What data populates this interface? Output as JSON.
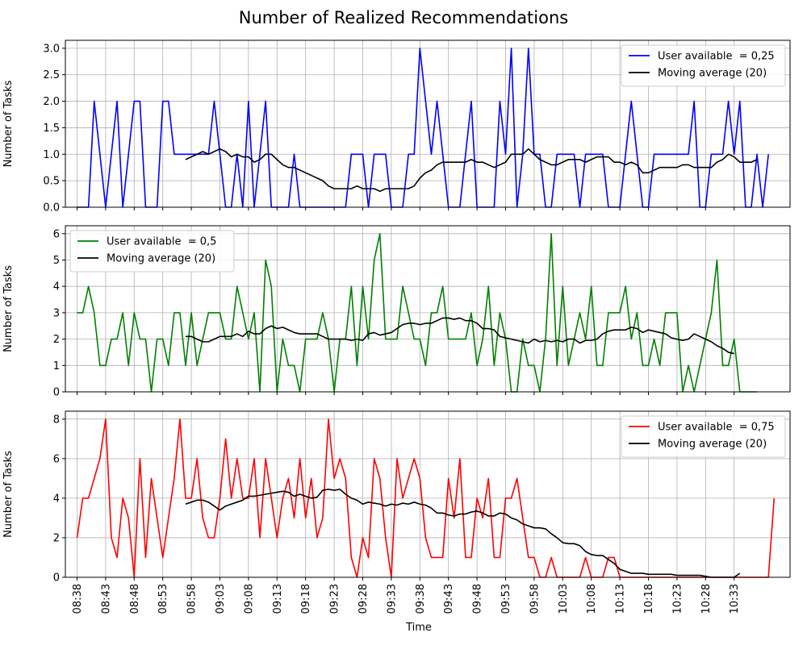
{
  "figure": {
    "title": "Number of Realized Recommendations"
  },
  "chart_data": {
    "type": "line",
    "title": "Number of Realized Recommendations",
    "xlabel": "Time",
    "x_tick_labels": [
      "08:38",
      "08:43",
      "08:48",
      "08:53",
      "08:58",
      "09:03",
      "09:08",
      "09:13",
      "09:18",
      "09:23",
      "09:28",
      "09:33",
      "09:38",
      "09:43",
      "09:48",
      "09:53",
      "09:58",
      "10:03",
      "10:08",
      "10:13",
      "10:18",
      "10:23",
      "10:28",
      "10:33"
    ],
    "x_start": "08:38",
    "x_step_minutes": 1,
    "grid": true,
    "panels": [
      {
        "ylabel": "Number of Tasks",
        "ylim": [
          0,
          3.15
        ],
        "yticks": [
          0.0,
          0.5,
          1.0,
          1.5,
          2.0,
          2.5,
          3.0
        ],
        "ytick_labels": [
          "0.0",
          "0.5",
          "1.0",
          "1.5",
          "2.0",
          "2.5",
          "3.0"
        ],
        "legend_position": "top-right",
        "series": [
          {
            "name": "User available  = 0,25",
            "color": "#0000ff",
            "x_offset": 0,
            "values": [
              0,
              0,
              0,
              2,
              1,
              0,
              1,
              2,
              0,
              1,
              2,
              2,
              0,
              0,
              0,
              2,
              2,
              1,
              1,
              1,
              1,
              1,
              1,
              1,
              2,
              1,
              0,
              0,
              1,
              0,
              2,
              0,
              1,
              2,
              0,
              0,
              0,
              0,
              1,
              0,
              0,
              0,
              0,
              0,
              0,
              0,
              0,
              0,
              1,
              1,
              1,
              0,
              1,
              1,
              1,
              0,
              0,
              0,
              1,
              1,
              3,
              2,
              1,
              2,
              1,
              0,
              0,
              0,
              1,
              2,
              0,
              0,
              0,
              0,
              2,
              1,
              3,
              0,
              1,
              3,
              1,
              1,
              0,
              0,
              1,
              1,
              1,
              1,
              0,
              1,
              1,
              1,
              1,
              0,
              0,
              0,
              1,
              2,
              1,
              0,
              0,
              1,
              1,
              1,
              1,
              1,
              1,
              1,
              2,
              0,
              0,
              1,
              1,
              1,
              2,
              1,
              2,
              0,
              0,
              1,
              0,
              1
            ]
          },
          {
            "name": "Moving average (20)",
            "color": "#000000",
            "x_offset": 19,
            "values": [
              0.9,
              0.95,
              1.0,
              1.05,
              1.0,
              1.05,
              1.1,
              1.05,
              0.95,
              1.0,
              0.95,
              0.95,
              0.85,
              0.9,
              1.0,
              1.0,
              0.9,
              0.8,
              0.75,
              0.75,
              0.7,
              0.65,
              0.6,
              0.55,
              0.5,
              0.4,
              0.35,
              0.35,
              0.35,
              0.35,
              0.4,
              0.35,
              0.35,
              0.35,
              0.3,
              0.35,
              0.35,
              0.35,
              0.35,
              0.35,
              0.4,
              0.55,
              0.65,
              0.7,
              0.8,
              0.85,
              0.85,
              0.85,
              0.85,
              0.85,
              0.9,
              0.85,
              0.85,
              0.8,
              0.75,
              0.8,
              0.85,
              1.0,
              1.0,
              1.0,
              1.1,
              1.0,
              0.9,
              0.85,
              0.8,
              0.8,
              0.85,
              0.9,
              0.9,
              0.9,
              0.85,
              0.9,
              0.95,
              0.95,
              0.95,
              0.85,
              0.85,
              0.8,
              0.85,
              0.8,
              0.65,
              0.65,
              0.7,
              0.75,
              0.75,
              0.75,
              0.75,
              0.8,
              0.8,
              0.75,
              0.75,
              0.75,
              0.75,
              0.85,
              0.9,
              1.0,
              0.95,
              0.85,
              0.85,
              0.85,
              0.9
            ]
          }
        ]
      },
      {
        "ylabel": "Number of Tasks",
        "ylim": [
          0,
          6.3
        ],
        "yticks": [
          0,
          1,
          2,
          3,
          4,
          5,
          6
        ],
        "ytick_labels": [
          "0",
          "1",
          "2",
          "3",
          "4",
          "5",
          "6"
        ],
        "legend_position": "top-left",
        "series": [
          {
            "name": "User available  = 0,5",
            "color": "#008000",
            "x_offset": 0,
            "values": [
              3,
              3,
              4,
              3,
              1,
              1,
              2,
              2,
              3,
              1,
              3,
              2,
              2,
              0,
              2,
              2,
              1,
              3,
              3,
              1,
              3,
              1,
              2,
              3,
              3,
              3,
              2,
              2,
              4,
              3,
              2,
              3,
              0,
              5,
              4,
              0,
              2,
              1,
              1,
              0,
              2,
              2,
              2,
              3,
              2,
              0,
              2,
              2,
              4,
              1,
              4,
              2,
              5,
              6,
              2,
              2,
              2,
              4,
              3,
              2,
              2,
              1,
              3,
              3,
              4,
              2,
              2,
              2,
              2,
              3,
              1,
              2,
              4,
              1,
              3,
              2,
              0,
              0,
              2,
              1,
              1,
              0,
              2,
              6,
              1,
              4,
              1,
              2,
              3,
              2,
              4,
              1,
              1,
              3,
              3,
              3,
              4,
              2,
              3,
              1,
              1,
              2,
              1,
              3,
              3,
              3,
              0,
              1,
              0,
              1,
              2,
              3,
              5,
              1,
              1,
              2,
              0,
              0,
              0,
              0
            ]
          },
          {
            "name": "Moving average (20)",
            "color": "#000000",
            "x_offset": 19,
            "values": [
              2.1,
              2.1,
              2.0,
              1.9,
              1.9,
              2.0,
              2.1,
              2.1,
              2.1,
              2.2,
              2.1,
              2.3,
              2.2,
              2.2,
              2.4,
              2.5,
              2.4,
              2.45,
              2.35,
              2.25,
              2.2,
              2.2,
              2.2,
              2.2,
              2.1,
              2.0,
              2.0,
              2.0,
              2.0,
              1.95,
              2.0,
              1.95,
              2.2,
              2.25,
              2.15,
              2.2,
              2.25,
              2.4,
              2.55,
              2.6,
              2.6,
              2.55,
              2.6,
              2.6,
              2.7,
              2.8,
              2.8,
              2.75,
              2.8,
              2.7,
              2.7,
              2.6,
              2.4,
              2.4,
              2.35,
              2.1,
              2.05,
              2.0,
              1.95,
              1.9,
              1.85,
              2.0,
              1.9,
              1.95,
              1.9,
              1.95,
              1.9,
              2.0,
              2.0,
              1.85,
              1.95,
              1.95,
              2.0,
              2.2,
              2.3,
              2.35,
              2.35,
              2.35,
              2.45,
              2.4,
              2.25,
              2.35,
              2.3,
              2.25,
              2.2,
              2.05,
              2.0,
              1.95,
              2.0,
              2.2,
              2.1,
              2.0,
              1.9,
              1.75,
              1.65,
              1.5,
              1.45
            ]
          }
        ]
      },
      {
        "ylabel": "Number of Tasks",
        "ylim": [
          0,
          8.4
        ],
        "yticks": [
          0,
          2,
          4,
          6,
          8
        ],
        "ytick_labels": [
          "0",
          "2",
          "4",
          "6",
          "8"
        ],
        "legend_position": "top-right",
        "series": [
          {
            "name": "User available  = 0,75",
            "color": "#ff0000",
            "x_offset": 0,
            "values": [
              2,
              4,
              4,
              5,
              6,
              8,
              2,
              1,
              4,
              3,
              0,
              6,
              1,
              5,
              3,
              1,
              3,
              5,
              8,
              4,
              4,
              6,
              3,
              2,
              2,
              4,
              7,
              4,
              6,
              4,
              4,
              6,
              2,
              6,
              4,
              2,
              4,
              5,
              3,
              6,
              3,
              5,
              2,
              3,
              8,
              5,
              6,
              5,
              1,
              0,
              2,
              1,
              6,
              5,
              2,
              0,
              6,
              4,
              5,
              6,
              5,
              2,
              1,
              1,
              1,
              5,
              3,
              6,
              1,
              1,
              4,
              3,
              5,
              1,
              1,
              4,
              4,
              5,
              3,
              1,
              1,
              0,
              0,
              1,
              0,
              0,
              0,
              0,
              0,
              1,
              0,
              0,
              0,
              1,
              1,
              0,
              0,
              0,
              0,
              0,
              0,
              0,
              0,
              0,
              0,
              0,
              0,
              0,
              0,
              0,
              0,
              0,
              0,
              0,
              0,
              0,
              0,
              0,
              0,
              0,
              0,
              0,
              4
            ]
          },
          {
            "name": "Moving average (20)",
            "color": "#000000",
            "x_offset": 19,
            "values": [
              3.7,
              3.8,
              3.9,
              3.9,
              3.8,
              3.6,
              3.4,
              3.6,
              3.7,
              3.8,
              3.9,
              4.1,
              4.1,
              4.15,
              4.2,
              4.25,
              4.3,
              4.35,
              4.3,
              4.1,
              4.2,
              4.1,
              4.0,
              4.05,
              4.4,
              4.45,
              4.4,
              4.45,
              4.2,
              4.0,
              3.9,
              3.7,
              3.8,
              3.75,
              3.7,
              3.6,
              3.7,
              3.65,
              3.75,
              3.7,
              3.8,
              3.7,
              3.65,
              3.5,
              3.25,
              3.25,
              3.15,
              3.1,
              3.2,
              3.2,
              3.3,
              3.35,
              3.25,
              3.1,
              3.1,
              3.25,
              3.2,
              3.0,
              2.9,
              2.7,
              2.6,
              2.5,
              2.5,
              2.45,
              2.2,
              2.0,
              1.75,
              1.7,
              1.7,
              1.6,
              1.3,
              1.15,
              1.1,
              1.1,
              0.9,
              0.7,
              0.4,
              0.3,
              0.2,
              0.2,
              0.2,
              0.15,
              0.15,
              0.15,
              0.15,
              0.15,
              0.1,
              0.1,
              0.1,
              0.1,
              0.1,
              0.05,
              0.0,
              0.0,
              0.0,
              0.0,
              0.0,
              0.2
            ]
          }
        ]
      }
    ]
  }
}
